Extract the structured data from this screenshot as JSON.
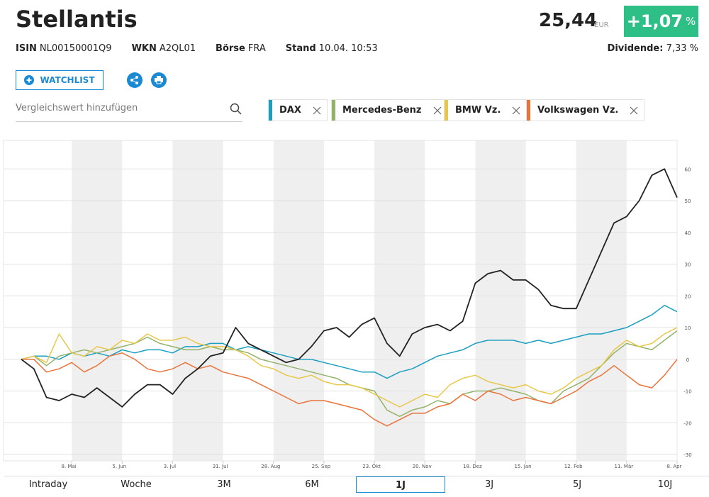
{
  "header": {
    "title": "Stellantis",
    "price": "25,44",
    "currency": "EUR",
    "change": "+1,07",
    "change_unit": "%",
    "meta": [
      {
        "key": "ISIN",
        "value": "NL00150001Q9"
      },
      {
        "key": "WKN",
        "value": "A2QL01"
      },
      {
        "key": "Börse",
        "value": "FRA"
      },
      {
        "key": "Stand",
        "value": "10.04. 10:53"
      }
    ],
    "dividend_label": "Dividende:",
    "dividend_value": "7,33 %"
  },
  "toolbar": {
    "watchlist": "WATCHLIST",
    "search_placeholder": "Vergleichswert hinzufügen"
  },
  "tabs": {
    "items": [
      "Intraday",
      "Woche",
      "3M",
      "6M",
      "1J",
      "3J",
      "5J",
      "10J"
    ],
    "active": "1J"
  },
  "chart_data": {
    "type": "line",
    "x": [
      0,
      1,
      2,
      3,
      4,
      5,
      6,
      7,
      8,
      9,
      10,
      11,
      12,
      13,
      14,
      15,
      16,
      17,
      18,
      19,
      20,
      21,
      22,
      23,
      24,
      25,
      26,
      27,
      28,
      29,
      30,
      31,
      32,
      33,
      34,
      35,
      36,
      37,
      38,
      39,
      40,
      41,
      42,
      43,
      44,
      45,
      46,
      47,
      48,
      49,
      50,
      51,
      52
    ],
    "xlim": [
      0,
      52
    ],
    "xticks": [
      {
        "value": 4,
        "label": "8. Mai"
      },
      {
        "value": 8,
        "label": "5. Jun"
      },
      {
        "value": 12,
        "label": "3. Jul"
      },
      {
        "value": 16,
        "label": "31. Jul"
      },
      {
        "value": 20,
        "label": "28. Aug"
      },
      {
        "value": 24,
        "label": "25. Sep"
      },
      {
        "value": 28,
        "label": "23. Okt"
      },
      {
        "value": 32,
        "label": "20. Nov"
      },
      {
        "value": 36,
        "label": "18. Dez"
      },
      {
        "value": 40,
        "label": "15. Jan"
      },
      {
        "value": 44,
        "label": "12. Feb"
      },
      {
        "value": 48,
        "label": "11. Mär"
      },
      {
        "value": 52,
        "label": "8. Apr"
      }
    ],
    "ylim": [
      -32,
      69
    ],
    "yticks": [
      -30,
      -20,
      -10,
      0,
      10,
      20,
      30,
      40,
      50,
      60
    ],
    "grid": true,
    "series": [
      {
        "color": "#222222",
        "values": [
          0,
          -3,
          -12,
          -13,
          -11,
          -12,
          -9,
          -12,
          -15,
          -11,
          -8,
          -8,
          -11,
          -6,
          -3,
          1,
          2,
          10,
          5,
          3,
          1,
          -1,
          0,
          4,
          9,
          10,
          7,
          11,
          13,
          5,
          1,
          8,
          10,
          11,
          9,
          12,
          24,
          27,
          28,
          25,
          25,
          22,
          17,
          16,
          16,
          25,
          34,
          43,
          45,
          50,
          58,
          60,
          51
        ]
      },
      {
        "name": "DAX",
        "color": "#1a9fc0",
        "values": [
          0,
          1,
          1,
          0,
          2,
          1,
          2,
          1,
          3,
          2,
          3,
          3,
          2,
          4,
          4,
          5,
          5,
          3,
          4,
          3,
          2,
          1,
          0,
          0,
          -1,
          -2,
          -3,
          -4,
          -4,
          -6,
          -4,
          -3,
          -1,
          1,
          2,
          3,
          5,
          6,
          6,
          6,
          5,
          6,
          5,
          6,
          7,
          8,
          8,
          9,
          10,
          12,
          14,
          17,
          15
        ]
      },
      {
        "name": "Mercedes-Benz",
        "color": "#94b26a",
        "values": [
          0,
          1,
          -2,
          1,
          2,
          3,
          2,
          3,
          4,
          5,
          7,
          5,
          4,
          3,
          3,
          4,
          3,
          3,
          2,
          0,
          -1,
          -2,
          -3,
          -4,
          -5,
          -6,
          -8,
          -9,
          -10,
          -16,
          -18,
          -16,
          -15,
          -13,
          -14,
          -11,
          -10,
          -10,
          -9,
          -10,
          -11,
          -13,
          -14,
          -10,
          -8,
          -6,
          -2,
          2,
          5,
          4,
          3,
          6,
          9
        ]
      },
      {
        "name": "BMW Vz.",
        "color": "#e8c84a",
        "values": [
          0,
          1,
          -1,
          8,
          2,
          1,
          4,
          3,
          6,
          5,
          8,
          6,
          6,
          7,
          5,
          4,
          4,
          3,
          1,
          -2,
          -3,
          -5,
          -6,
          -5,
          -7,
          -8,
          -8,
          -9,
          -11,
          -13,
          -15,
          -13,
          -11,
          -12,
          -8,
          -6,
          -5,
          -7,
          -8,
          -9,
          -8,
          -10,
          -11,
          -9,
          -6,
          -4,
          -2,
          3,
          6,
          4,
          5,
          8,
          10
        ]
      },
      {
        "name": "Volkswagen Vz.",
        "color": "#e8743b",
        "values": [
          0,
          0,
          -4,
          -3,
          -1,
          -4,
          -2,
          1,
          2,
          0,
          -3,
          -4,
          -3,
          -1,
          -3,
          -2,
          -4,
          -5,
          -6,
          -8,
          -10,
          -12,
          -14,
          -13,
          -13,
          -14,
          -15,
          -16,
          -19,
          -21,
          -19,
          -17,
          -17,
          -15,
          -14,
          -11,
          -13,
          -10,
          -11,
          -13,
          -12,
          -13,
          -14,
          -12,
          -10,
          -7,
          -5,
          -2,
          -5,
          -8,
          -9,
          -5,
          0
        ]
      }
    ]
  }
}
